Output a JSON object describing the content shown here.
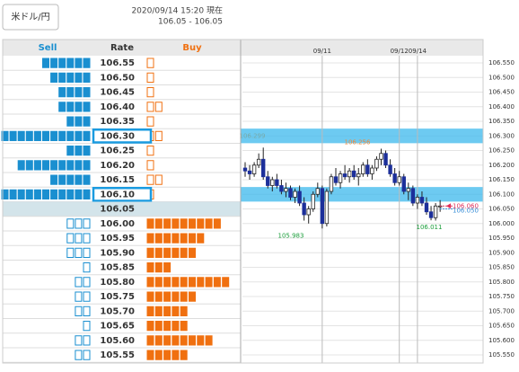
{
  "header": {
    "pair_button": "米ドル/円",
    "timestamp": "2020/09/14 15:20 現在",
    "range": "106.05 - 106.05"
  },
  "table": {
    "columns": [
      "Sell",
      "Rate",
      "Buy"
    ],
    "rows": [
      {
        "rate": "106.55",
        "sell": 6,
        "buy": 1
      },
      {
        "rate": "106.50",
        "sell": 5,
        "buy": 1
      },
      {
        "rate": "106.45",
        "sell": 4,
        "buy": 1
      },
      {
        "rate": "106.40",
        "sell": 4,
        "buy": 2
      },
      {
        "rate": "106.35",
        "sell": 3,
        "buy": 1
      },
      {
        "rate": "106.30",
        "sell": 11,
        "buy": 2
      },
      {
        "rate": "106.25",
        "sell": 3,
        "buy": 1
      },
      {
        "rate": "106.20",
        "sell": 9,
        "buy": 1
      },
      {
        "rate": "106.15",
        "sell": 5,
        "buy": 2
      },
      {
        "rate": "106.10",
        "sell": 11,
        "buy": 1
      },
      {
        "rate": "106.05",
        "sell": 0,
        "buy": 0
      },
      {
        "rate": "106.00",
        "sell": 3,
        "buy": 9
      },
      {
        "rate": "105.95",
        "sell": 3,
        "buy": 7
      },
      {
        "rate": "105.90",
        "sell": 3,
        "buy": 6
      },
      {
        "rate": "105.85",
        "sell": 1,
        "buy": 3
      },
      {
        "rate": "105.80",
        "sell": 2,
        "buy": 10
      },
      {
        "rate": "105.75",
        "sell": 2,
        "buy": 6
      },
      {
        "rate": "105.70",
        "sell": 2,
        "buy": 5
      },
      {
        "rate": "105.65",
        "sell": 1,
        "buy": 5
      },
      {
        "rate": "105.60",
        "sell": 2,
        "buy": 8
      },
      {
        "rate": "105.55",
        "sell": 2,
        "buy": 5
      }
    ]
  },
  "chart": {
    "ylim": [
      105.55,
      106.55
    ],
    "yticks": [
      {
        "value": 106.55,
        "label": "106.550"
      },
      {
        "value": 106.5,
        "label": "106.500"
      },
      {
        "value": 106.45,
        "label": "106.450"
      },
      {
        "value": 106.4,
        "label": "106.400"
      },
      {
        "value": 106.35,
        "label": "106.350"
      },
      {
        "value": 106.3,
        "label": "106.300"
      },
      {
        "value": 106.25,
        "label": "106.250"
      },
      {
        "value": 106.2,
        "label": "106.200"
      },
      {
        "value": 106.15,
        "label": "106.150"
      },
      {
        "value": 106.1,
        "label": "106.100"
      },
      {
        "value": 106.05,
        "label": "106.050"
      },
      {
        "value": 106,
        "label": "106.000"
      },
      {
        "value": 105.95,
        "label": "105.950"
      },
      {
        "value": 105.9,
        "label": "105.900"
      },
      {
        "value": 105.85,
        "label": "105.850"
      },
      {
        "value": 105.8,
        "label": "105.800"
      },
      {
        "value": 105.75,
        "label": "105.750"
      },
      {
        "value": 105.7,
        "label": "105.700"
      },
      {
        "value": 105.65,
        "label": "105.650"
      },
      {
        "value": 105.6,
        "label": "105.600"
      },
      {
        "value": 105.55,
        "label": "105.550"
      }
    ],
    "bands": [
      106.3,
      106.1
    ],
    "dates": [
      null,
      null,
      null,
      null,
      null,
      null,
      null,
      null,
      null,
      null,
      null,
      null,
      null,
      null,
      null,
      null,
      null,
      "09/11",
      null,
      null,
      null,
      null,
      null,
      null,
      null,
      null,
      null,
      null,
      null,
      null,
      null,
      null,
      null,
      null,
      "09/12",
      null,
      null,
      null,
      "09/14",
      null,
      null,
      null,
      null,
      null
    ],
    "open": [
      106.19,
      106.18,
      106.17,
      106.2,
      106.22,
      106.16,
      106.13,
      106.15,
      106.13,
      106.11,
      106.12,
      106.09,
      106.11,
      106.07,
      106.03,
      106.05,
      106.1,
      106.12,
      106,
      106.11,
      106.16,
      106.14,
      106.17,
      106.16,
      106.18,
      106.16,
      106.17,
      106.2,
      106.17,
      106.19,
      106.22,
      106.24,
      106.2,
      106.17,
      106.14,
      106.16,
      106.11,
      106.12,
      106.07,
      106.09,
      106.07,
      106.04,
      106.02,
      106.06
    ],
    "high": [
      106.21,
      106.2,
      106.21,
      106.24,
      106.26,
      106.18,
      106.16,
      106.17,
      106.15,
      106.14,
      106.13,
      106.12,
      106.13,
      106.09,
      106.06,
      106.11,
      106.14,
      106.13,
      106.12,
      106.17,
      106.19,
      106.18,
      106.2,
      106.19,
      106.2,
      106.19,
      106.21,
      106.22,
      106.2,
      106.23,
      106.256,
      106.25,
      106.22,
      106.19,
      106.18,
      106.17,
      106.14,
      106.13,
      106.1,
      106.11,
      106.09,
      106.06,
      106.07,
      106.08
    ],
    "low": [
      106.16,
      106.15,
      106.16,
      106.19,
      106.15,
      106.12,
      106.11,
      106.12,
      106.1,
      106.09,
      106.08,
      106.07,
      106.06,
      106.01,
      106,
      106.04,
      106.09,
      105.983,
      105.99,
      106.1,
      106.13,
      106.12,
      106.15,
      106.14,
      106.15,
      106.13,
      106.16,
      106.16,
      106.15,
      106.18,
      106.2,
      106.19,
      106.16,
      106.13,
      106.13,
      106.1,
      106.08,
      106.06,
      106.05,
      106.06,
      106.03,
      106.011,
      106.01,
      106.04
    ],
    "close": [
      106.18,
      106.17,
      106.2,
      106.22,
      106.16,
      106.13,
      106.15,
      106.13,
      106.11,
      106.12,
      106.09,
      106.11,
      106.07,
      106.03,
      106.05,
      106.1,
      106.12,
      106,
      106.11,
      106.16,
      106.14,
      106.17,
      106.16,
      106.18,
      106.16,
      106.17,
      106.2,
      106.17,
      106.19,
      106.22,
      106.24,
      106.2,
      106.17,
      106.14,
      106.16,
      106.11,
      106.12,
      106.07,
      106.09,
      106.07,
      106.04,
      106.02,
      106.06,
      106.06
    ],
    "band_label": {
      "value": 106.299,
      "label": "106.299"
    },
    "high_label": {
      "value": 106.256,
      "label": "106.256"
    },
    "low_label": {
      "value": 105.983,
      "label": "105.983"
    },
    "low_label_2": {
      "value": 106.011,
      "label": "106.011"
    },
    "bid": {
      "value": 106.06,
      "label": "106.060"
    },
    "ask": {
      "value": 106.05,
      "label": "106.050"
    }
  }
}
